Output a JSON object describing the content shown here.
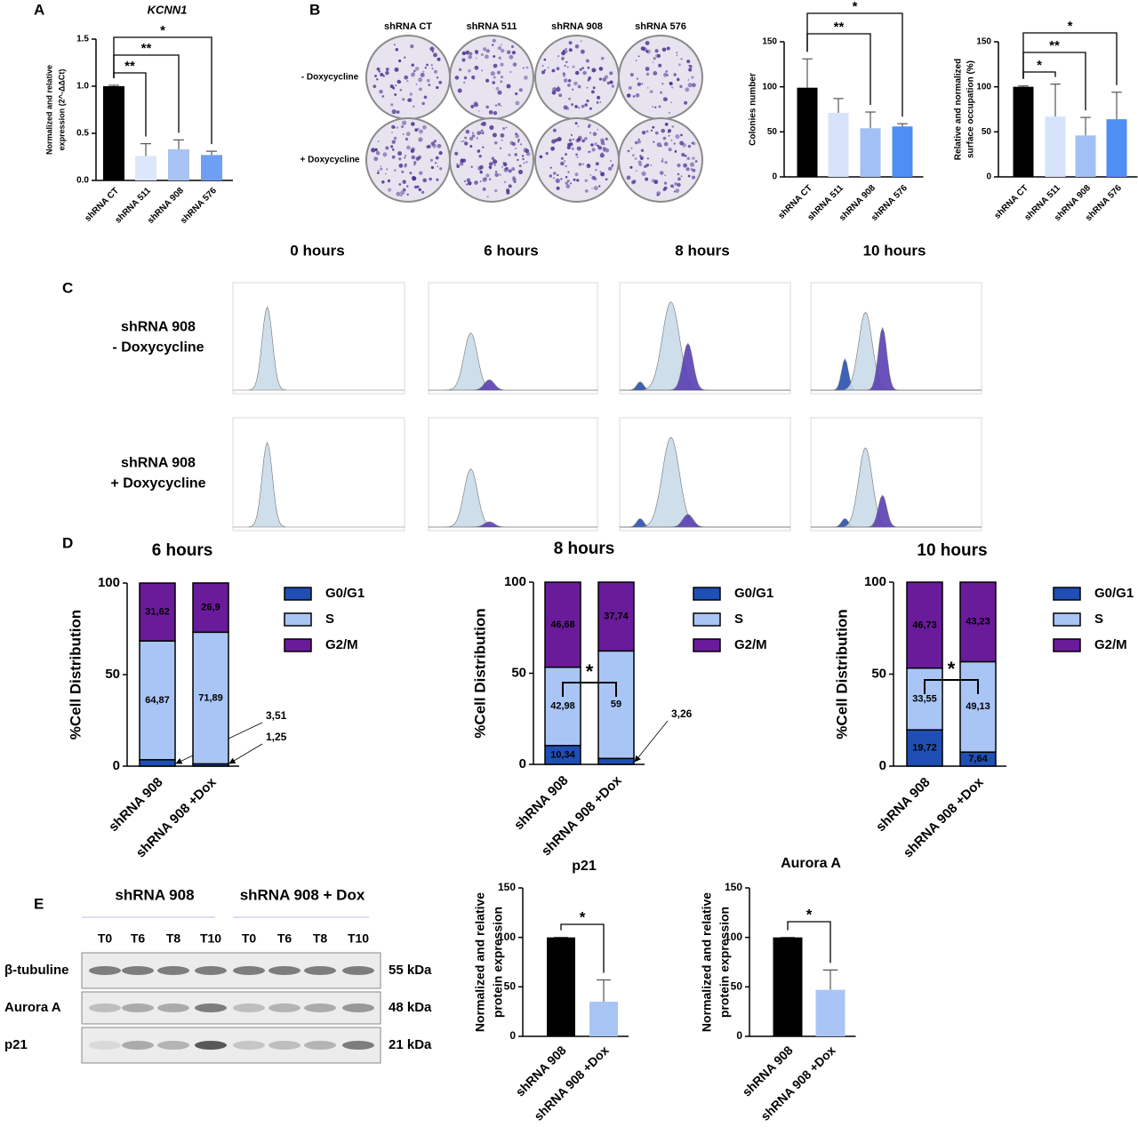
{
  "panels": [
    "A",
    "B",
    "C",
    "D",
    "E"
  ],
  "colony_assay": {
    "columns": [
      "shRNA CT",
      "shRNA 511",
      "shRNA 908",
      "shRNA 576"
    ],
    "rows": [
      "- Doxycycline",
      "+ Doxycycline"
    ]
  },
  "cell_cycle": {
    "timepoints": [
      "0 hours",
      "6 hours",
      "8 hours",
      "10 hours"
    ],
    "rows": [
      [
        "shRNA 908",
        "- Doxycycline"
      ],
      [
        "shRNA 908",
        "+ Doxycycline"
      ]
    ]
  },
  "western_blot": {
    "groups": [
      "shRNA 908",
      "shRNA 908 + Dox"
    ],
    "lanes": [
      "T0",
      "T6",
      "T8",
      "T10",
      "T0",
      "T6",
      "T8",
      "T10"
    ],
    "proteins": [
      {
        "name": "β-tubuline",
        "size": "55 kDa"
      },
      {
        "name": "Aurora A",
        "size": "48 kDa"
      },
      {
        "name": "p21",
        "size": "21 kDa"
      }
    ]
  },
  "chart_data": [
    {
      "type": "bar",
      "title": "KCNN1",
      "ylabel": [
        "Normalized and relative",
        "expression (2^-ΔΔCt)"
      ],
      "categories": [
        "shRNA CT",
        "shRNA 511",
        "shRNA 908",
        "shRNA 576"
      ],
      "values": [
        1.0,
        0.26,
        0.33,
        0.27
      ],
      "errors": [
        0.01,
        0.13,
        0.1,
        0.04
      ],
      "colors": [
        "#000000",
        "#dce7fb",
        "#a8c3f4",
        "#6e9ff2"
      ],
      "ylim": [
        0,
        1.5
      ],
      "yticks": [
        {
          "value": 0,
          "label": "0.0"
        },
        0.5,
        {
          "value": 1,
          "label": "1.0"
        },
        1.5
      ],
      "annotations": [
        {
          "text": "**",
          "span": [
            0,
            1
          ]
        },
        {
          "text": "**",
          "span": [
            0,
            2
          ]
        },
        {
          "text": "*",
          "span": [
            0,
            3
          ]
        }
      ]
    },
    {
      "type": "bar",
      "ylabel": [
        "Colonies number"
      ],
      "categories": [
        "shRNA CT",
        "shRNA 511",
        "shRNA 908",
        "shRNA 576"
      ],
      "values": [
        99,
        71,
        54,
        56
      ],
      "errors": [
        32,
        16,
        18,
        3
      ],
      "colors": [
        "#000000",
        "#d6e3fb",
        "#a3c0f4",
        "#4f8ef3"
      ],
      "ylim": [
        0,
        150
      ],
      "yticks": [
        0,
        50,
        100,
        150
      ],
      "annotations": [
        {
          "text": "**",
          "span": [
            0,
            2
          ]
        },
        {
          "text": "*",
          "span": [
            0,
            3
          ]
        }
      ]
    },
    {
      "type": "bar",
      "ylabel": [
        "Relative and normalized",
        "surface occupation (%)"
      ],
      "categories": [
        "shRNA CT",
        "shRNA 511",
        "shRNA 908",
        "shRNA 576"
      ],
      "values": [
        100,
        67,
        46,
        64
      ],
      "errors": [
        1,
        36,
        20,
        30
      ],
      "colors": [
        "#000000",
        "#d6e3fb",
        "#a3c0f4",
        "#4f8ef3"
      ],
      "ylim": [
        0,
        150
      ],
      "yticks": [
        0,
        50,
        100,
        150
      ],
      "annotations": [
        {
          "text": "*",
          "span": [
            0,
            1
          ]
        },
        {
          "text": "**",
          "span": [
            0,
            2
          ]
        },
        {
          "text": "*",
          "span": [
            0,
            3
          ]
        }
      ]
    },
    {
      "type": "stacked",
      "title": "6 hours",
      "ylabel": [
        "%Cell Distribution"
      ],
      "categories": [
        "shRNA 908",
        "shRNA 908 +Dox"
      ],
      "series": [
        {
          "name": "G0/G1",
          "color": "#1f4fb4",
          "values": [
            3.51,
            1.25
          ],
          "value_labels": [
            "3,51",
            "1,25"
          ]
        },
        {
          "name": "S",
          "color": "#a9c5f5",
          "values": [
            64.87,
            71.89
          ],
          "value_labels": [
            "64,87",
            "71,89"
          ]
        },
        {
          "name": "G2/M",
          "color": "#6a1b9a",
          "values": [
            31.62,
            26.9
          ],
          "value_labels": [
            "31,62",
            "26,9"
          ]
        }
      ],
      "ylim": [
        0,
        100
      ],
      "yticks": [
        0,
        50,
        100
      ],
      "annotations": []
    },
    {
      "type": "stacked",
      "title": "8 hours",
      "ylabel": [
        "%Cell Distribution"
      ],
      "categories": [
        "shRNA 908",
        "shRNA 908 +Dox"
      ],
      "series": [
        {
          "name": "G0/G1",
          "color": "#1f4fb4",
          "values": [
            10.34,
            3.26
          ],
          "value_labels": [
            "10,34",
            "3,26"
          ]
        },
        {
          "name": "S",
          "color": "#a9c5f5",
          "values": [
            42.98,
            59
          ],
          "value_labels": [
            "42,98",
            "59"
          ]
        },
        {
          "name": "G2/M",
          "color": "#6a1b9a",
          "values": [
            46.68,
            37.74
          ],
          "value_labels": [
            "46,68",
            "37,74"
          ]
        }
      ],
      "ylim": [
        0,
        100
      ],
      "yticks": [
        0,
        50,
        100
      ],
      "annotations": [
        {
          "text": "*",
          "span": [
            0,
            1
          ]
        }
      ]
    },
    {
      "type": "stacked",
      "title": "10 hours",
      "ylabel": [
        "%Cell Distribution"
      ],
      "categories": [
        "shRNA 908",
        "shRNA 908 +Dox"
      ],
      "series": [
        {
          "name": "G0/G1",
          "color": "#1f4fb4",
          "values": [
            19.72,
            7.64
          ],
          "value_labels": [
            "19,72",
            "7,64"
          ]
        },
        {
          "name": "S",
          "color": "#a9c5f5",
          "values": [
            33.55,
            49.13
          ],
          "value_labels": [
            "33,55",
            "49,13"
          ]
        },
        {
          "name": "G2/M",
          "color": "#6a1b9a",
          "values": [
            46.73,
            43.23
          ],
          "value_labels": [
            "46,73",
            "43,23"
          ]
        }
      ],
      "ylim": [
        0,
        100
      ],
      "yticks": [
        0,
        50,
        100
      ],
      "annotations": [
        {
          "text": "*",
          "span": [
            0,
            1
          ]
        }
      ]
    },
    {
      "type": "bar",
      "title": "p21",
      "ylabel": [
        "Normalized and relative",
        "protein expression"
      ],
      "categories": [
        "shRNA 908",
        "shRNA 908 +Dox"
      ],
      "values": [
        100,
        35
      ],
      "errors": [
        0,
        22
      ],
      "colors": [
        "#000000",
        "#a9c5f5"
      ],
      "ylim": [
        0,
        150
      ],
      "yticks": [
        0,
        50,
        100,
        150
      ],
      "annotations": [
        {
          "text": "*",
          "span": [
            0,
            1
          ]
        }
      ]
    },
    {
      "type": "bar",
      "title": "Aurora A",
      "ylabel": [
        "Normalized and relative",
        "protein expression"
      ],
      "categories": [
        "shRNA 908",
        "shRNA 908 +Dox"
      ],
      "values": [
        100,
        47
      ],
      "errors": [
        0,
        20
      ],
      "colors": [
        "#000000",
        "#a9c5f5"
      ],
      "ylim": [
        0,
        150
      ],
      "yticks": [
        0,
        50,
        100,
        150
      ],
      "annotations": [
        {
          "text": "*",
          "span": [
            0,
            1
          ]
        }
      ]
    }
  ]
}
